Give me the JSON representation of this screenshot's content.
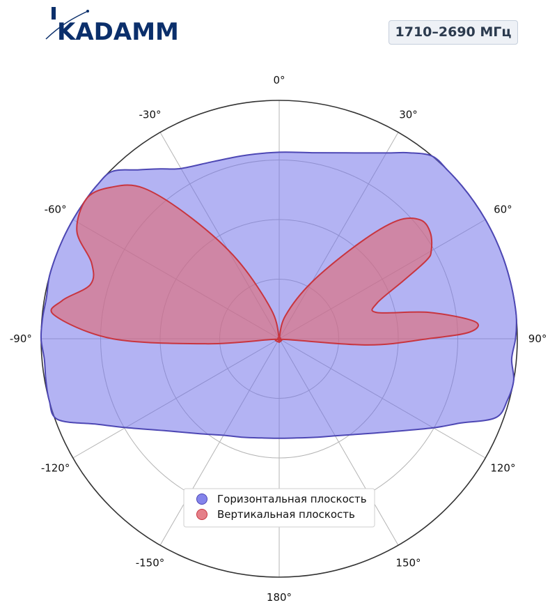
{
  "brand": {
    "logo_text": "KADAMM",
    "colors": {
      "logo": "#0b2f6b"
    }
  },
  "badge": {
    "label": "1710–2690 МГц"
  },
  "chart_data": {
    "type": "polar-area",
    "theta_zero": "top",
    "theta_direction": "clockwise",
    "theta_ticks": [
      0,
      30,
      60,
      90,
      120,
      150,
      180,
      -150,
      -120,
      -90,
      -60,
      -30
    ],
    "theta_tick_labels": [
      "0°",
      "30°",
      "60°",
      "90°",
      "120°",
      "150°",
      "180°",
      "-150°",
      "-120°",
      "-90°",
      "-60°",
      "-30°"
    ],
    "r_range": [
      0,
      4
    ],
    "r_gridlines": [
      1,
      2,
      3,
      4
    ],
    "grid": true,
    "legend_placement": "lower-center",
    "series": [
      {
        "name": "Горизонтальная плоскость",
        "color": "#6e6ee8",
        "edge_color": "#4d47b4",
        "points": [
          [
            0,
            3.13
          ],
          [
            10,
            3.17
          ],
          [
            20,
            3.32
          ],
          [
            30,
            3.6
          ],
          [
            35,
            3.81
          ],
          [
            40,
            4.0
          ],
          [
            45,
            4.0
          ],
          [
            50,
            4.0
          ],
          [
            55,
            4.0
          ],
          [
            60,
            4.0
          ],
          [
            65,
            4.0
          ],
          [
            70,
            4.0
          ],
          [
            75,
            4.0
          ],
          [
            80,
            4.0
          ],
          [
            85,
            4.0
          ],
          [
            90,
            3.97
          ],
          [
            95,
            3.92
          ],
          [
            100,
            4.0
          ],
          [
            105,
            3.97
          ],
          [
            110,
            3.87
          ],
          [
            115,
            3.35
          ],
          [
            120,
            2.99
          ],
          [
            130,
            2.43
          ],
          [
            140,
            2.09
          ],
          [
            150,
            1.88
          ],
          [
            160,
            1.76
          ],
          [
            170,
            1.69
          ],
          [
            180,
            1.67
          ],
          [
            190,
            1.69
          ],
          [
            200,
            1.76
          ],
          [
            210,
            1.87
          ],
          [
            220,
            2.08
          ],
          [
            230,
            2.41
          ],
          [
            240,
            2.98
          ],
          [
            245,
            3.39
          ],
          [
            250,
            3.96
          ],
          [
            255,
            4.0
          ],
          [
            260,
            3.98
          ],
          [
            265,
            3.96
          ],
          [
            270,
            4.0
          ],
          [
            275,
            3.99
          ],
          [
            280,
            3.97
          ],
          [
            285,
            4.0
          ],
          [
            290,
            4.0
          ],
          [
            295,
            4.0
          ],
          [
            300,
            4.0
          ],
          [
            305,
            4.0
          ],
          [
            310,
            4.0
          ],
          [
            315,
            3.97
          ],
          [
            320,
            3.7
          ],
          [
            325,
            3.48
          ],
          [
            330,
            3.3
          ],
          [
            340,
            3.17
          ],
          [
            350,
            3.13
          ]
        ]
      },
      {
        "name": "Вертикальная плоскость",
        "color": "#e06a74",
        "edge_color": "#c8353f",
        "points": [
          [
            0,
            0.0
          ],
          [
            15,
            0.4
          ],
          [
            30,
            1.1
          ],
          [
            40,
            2.1
          ],
          [
            45,
            2.8
          ],
          [
            50,
            3.1
          ],
          [
            55,
            3.1
          ],
          [
            60,
            2.95
          ],
          [
            62,
            2.8
          ],
          [
            65,
            2.3
          ],
          [
            70,
            1.75
          ],
          [
            75,
            1.7
          ],
          [
            80,
            2.55
          ],
          [
            85,
            3.3
          ],
          [
            88,
            3.2
          ],
          [
            90,
            2.5
          ],
          [
            94,
            1.5
          ],
          [
            100,
            0.06
          ],
          [
            180,
            0.06
          ],
          [
            262,
            0.06
          ],
          [
            266,
            1.2
          ],
          [
            270,
            2.8
          ],
          [
            276,
            3.8
          ],
          [
            280,
            3.7
          ],
          [
            286,
            3.3
          ],
          [
            292,
            3.4
          ],
          [
            298,
            3.85
          ],
          [
            306,
            4.0
          ],
          [
            312,
            3.8
          ],
          [
            318,
            3.4
          ],
          [
            324,
            2.5
          ],
          [
            332,
            1.5
          ],
          [
            345,
            0.5
          ],
          [
            360,
            0.0
          ]
        ]
      }
    ]
  }
}
